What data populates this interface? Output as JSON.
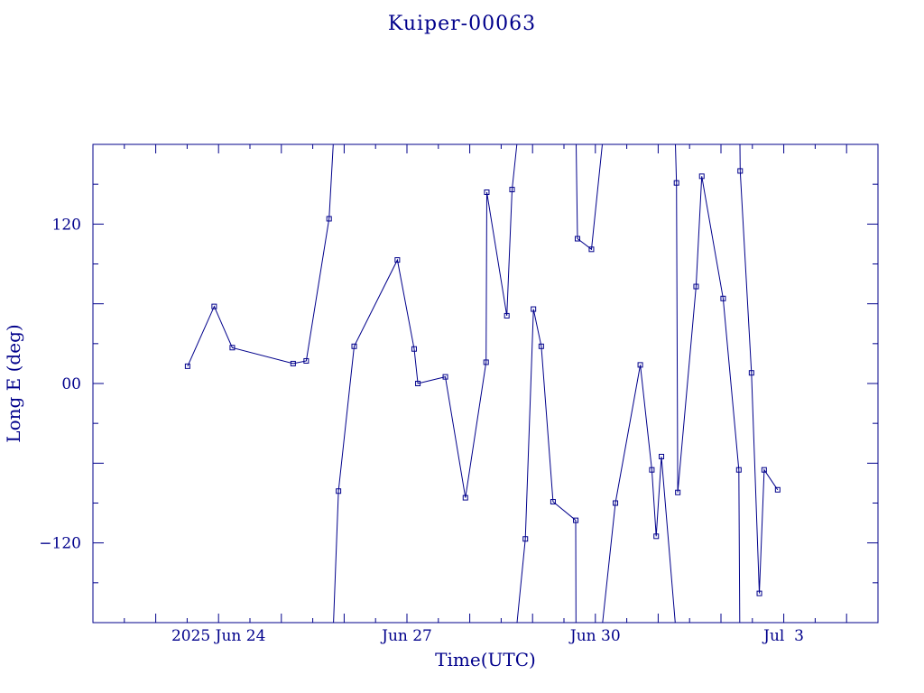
{
  "chart_data": {
    "type": "line",
    "title": "Kuiper-00063",
    "xlabel": "Time(UTC)",
    "ylabel": "Long E (deg)",
    "ylim": [
      -180,
      180
    ],
    "xlim": [
      "2025-06-22T00:00",
      "2025-07-04T12:00"
    ],
    "yticks": [
      {
        "value": 120,
        "label": "120"
      },
      {
        "value": 0,
        "label": "00"
      },
      {
        "value": -120,
        "label": "−120"
      }
    ],
    "xticks": [
      {
        "value": "2025-06-24T00:00",
        "label": "2025 Jun 24"
      },
      {
        "value": "2025-06-27T00:00",
        "label": "Jun 27"
      },
      {
        "value": "2025-06-30T00:00",
        "label": "Jun 30"
      },
      {
        "value": "2025-07-03T00:00",
        "label": "Jul  3"
      }
    ],
    "grid": false,
    "line_color": "#00008b",
    "series": [
      {
        "points": [
          {
            "x": "2025-06-23T12:10",
            "y": 13
          },
          {
            "x": "2025-06-23T22:20",
            "y": 58
          },
          {
            "x": "2025-06-24T05:15",
            "y": 27
          },
          {
            "x": "2025-06-25T04:30",
            "y": 15
          },
          {
            "x": "2025-06-25T09:30",
            "y": 17
          },
          {
            "x": "2025-06-25T18:15",
            "y": 124
          },
          {
            "x": "2025-06-25T19:50",
            "y": 180,
            "wrap": true
          },
          {
            "x": "2025-06-25T19:55",
            "y": -180
          },
          {
            "x": "2025-06-25T21:50",
            "y": -81
          },
          {
            "x": "2025-06-26T03:50",
            "y": 28
          },
          {
            "x": "2025-06-26T20:20",
            "y": 93
          },
          {
            "x": "2025-06-27T02:45",
            "y": 26
          },
          {
            "x": "2025-06-27T04:10",
            "y": 0
          },
          {
            "x": "2025-06-27T14:40",
            "y": 5
          },
          {
            "x": "2025-06-27T22:20",
            "y": -86
          },
          {
            "x": "2025-06-28T06:15",
            "y": 16
          },
          {
            "x": "2025-06-28T06:30",
            "y": 144
          },
          {
            "x": "2025-06-28T14:10",
            "y": 51
          },
          {
            "x": "2025-06-28T16:10",
            "y": 146
          },
          {
            "x": "2025-06-28T18:00",
            "y": 180,
            "wrap": true
          },
          {
            "x": "2025-06-28T18:05",
            "y": -180
          },
          {
            "x": "2025-06-28T21:15",
            "y": -117
          },
          {
            "x": "2025-06-29T00:20",
            "y": 56
          },
          {
            "x": "2025-06-29T03:20",
            "y": 28
          },
          {
            "x": "2025-06-29T07:50",
            "y": -89
          },
          {
            "x": "2025-06-29T16:30",
            "y": -103
          },
          {
            "x": "2025-06-29T16:35",
            "y": -180,
            "wrap": true
          },
          {
            "x": "2025-06-29T16:40",
            "y": 180
          },
          {
            "x": "2025-06-29T17:10",
            "y": 109
          },
          {
            "x": "2025-06-29T22:30",
            "y": 101
          },
          {
            "x": "2025-06-30T02:40",
            "y": 180,
            "wrap": true
          },
          {
            "x": "2025-06-30T02:45",
            "y": -180
          },
          {
            "x": "2025-06-30T07:40",
            "y": -90
          },
          {
            "x": "2025-06-30T17:10",
            "y": 14
          },
          {
            "x": "2025-06-30T21:35",
            "y": -65
          },
          {
            "x": "2025-06-30T23:15",
            "y": -115
          },
          {
            "x": "2025-07-01T01:15",
            "y": -55
          },
          {
            "x": "2025-07-01T06:30",
            "y": -180,
            "wrap": true
          },
          {
            "x": "2025-07-01T06:35",
            "y": 180
          },
          {
            "x": "2025-07-01T07:00",
            "y": 151
          },
          {
            "x": "2025-07-01T07:30",
            "y": -82
          },
          {
            "x": "2025-07-01T14:30",
            "y": 73
          },
          {
            "x": "2025-07-01T16:40",
            "y": 156
          },
          {
            "x": "2025-07-02T00:50",
            "y": 64
          },
          {
            "x": "2025-07-02T06:50",
            "y": -65
          },
          {
            "x": "2025-07-02T07:10",
            "y": -180,
            "wrap": true
          },
          {
            "x": "2025-07-02T07:15",
            "y": 180
          },
          {
            "x": "2025-07-02T07:20",
            "y": 160
          },
          {
            "x": "2025-07-02T11:40",
            "y": 8
          },
          {
            "x": "2025-07-02T14:40",
            "y": -158
          },
          {
            "x": "2025-07-02T16:30",
            "y": -65
          },
          {
            "x": "2025-07-02T21:40",
            "y": -80
          }
        ]
      }
    ]
  }
}
